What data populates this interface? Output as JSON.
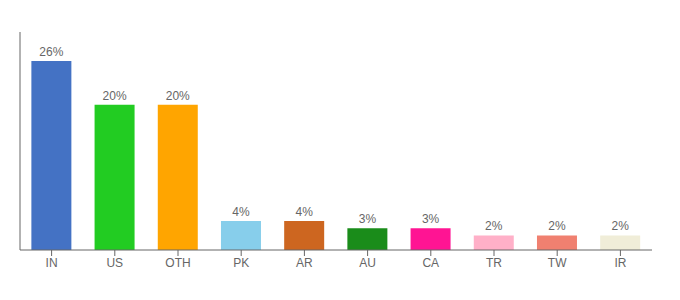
{
  "chart_data": {
    "type": "bar",
    "categories": [
      "IN",
      "US",
      "OTH",
      "PK",
      "AR",
      "AU",
      "CA",
      "TR",
      "TW",
      "IR"
    ],
    "values": [
      26,
      20,
      20,
      4,
      4,
      3,
      3,
      2,
      2,
      2
    ],
    "value_labels": [
      "26%",
      "20%",
      "20%",
      "4%",
      "4%",
      "3%",
      "3%",
      "2%",
      "2%",
      "2%"
    ],
    "colors": [
      "#4472C4",
      "#22CC22",
      "#FFA500",
      "#87CEEB",
      "#CD6620",
      "#1A8C1A",
      "#FF1493",
      "#FFB0C8",
      "#F08070",
      "#F0EDD8"
    ],
    "ylim": [
      0,
      30
    ],
    "data_labels": true,
    "tick_labels": "x"
  }
}
